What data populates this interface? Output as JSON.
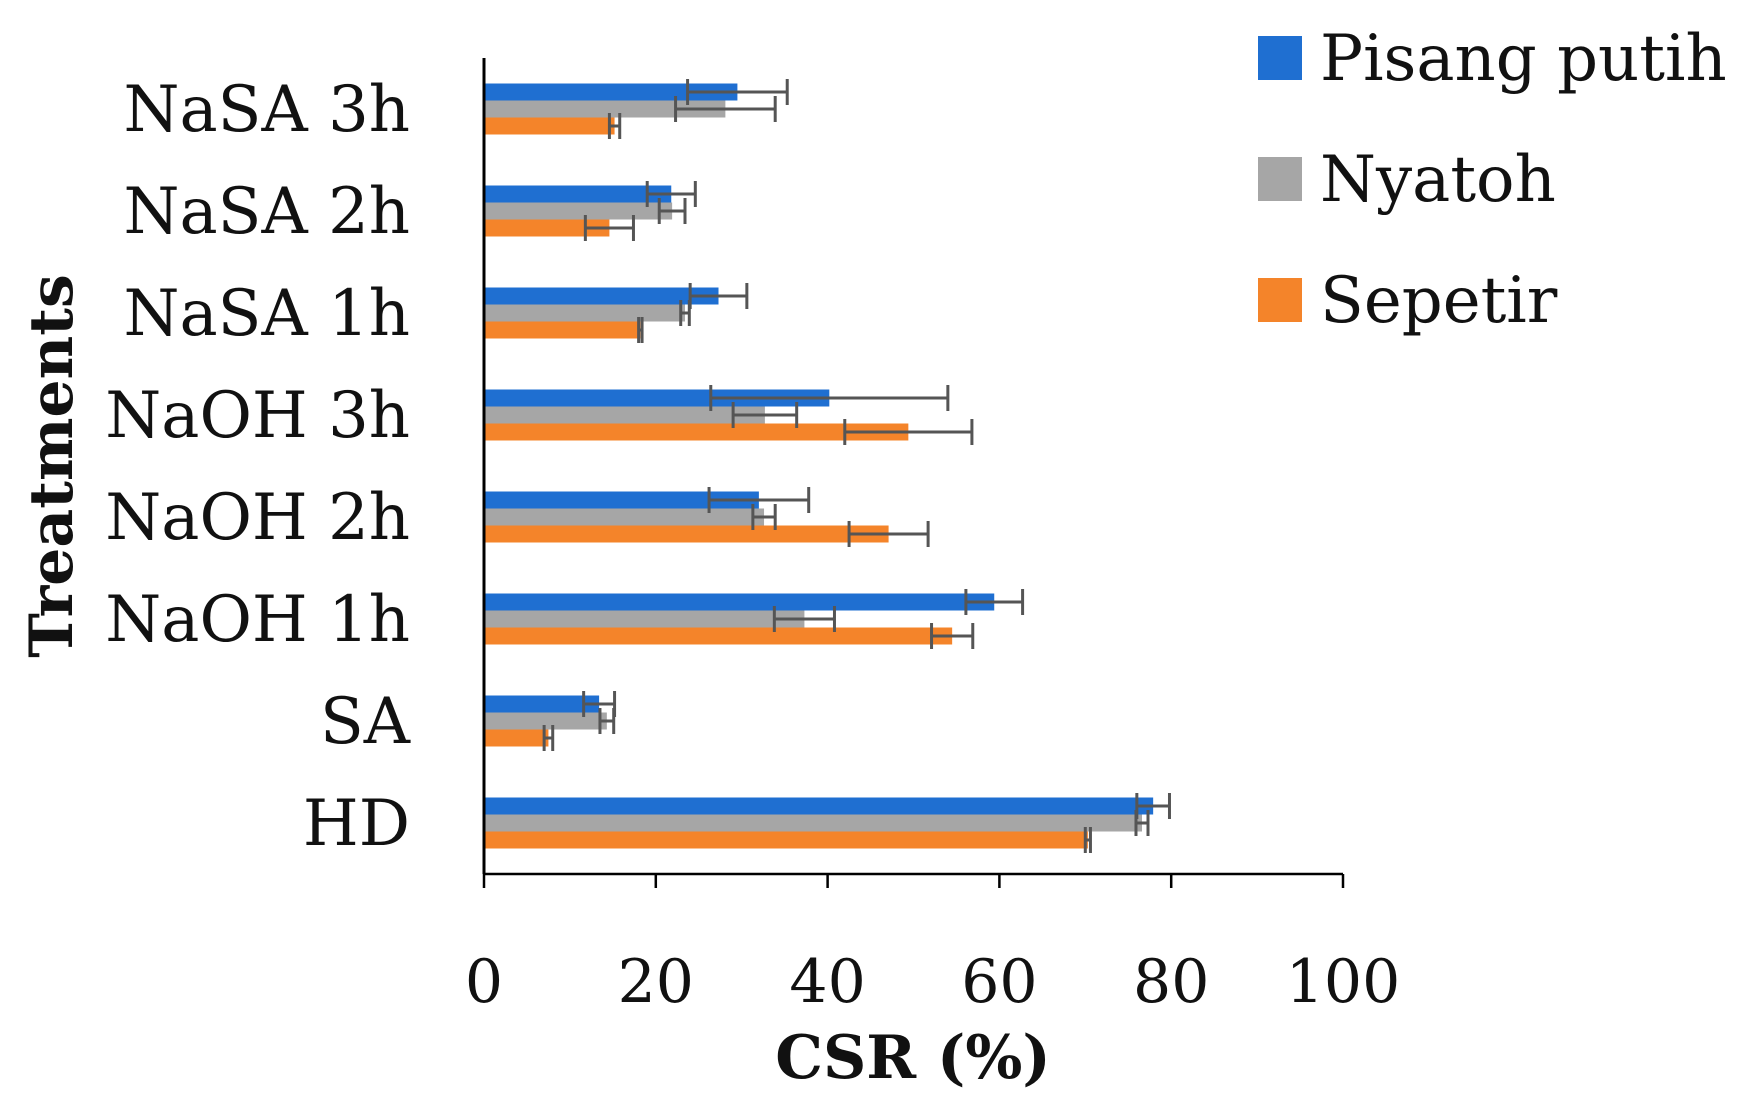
{
  "chart_data": {
    "type": "bar",
    "orientation": "horizontal",
    "title": "",
    "xlabel": "CSR (%)",
    "ylabel": "Treatments",
    "xlim": [
      0,
      100
    ],
    "xticks": [
      "0",
      "20",
      "40",
      "60",
      "80",
      "100"
    ],
    "grid": false,
    "legend_position": "top-right",
    "categories": [
      "NaSA 3h",
      "NaSA 2h",
      "NaSA 1h",
      "NaOH 3h",
      "NaOH 2h",
      "NaOH 1h",
      "SA",
      "HD"
    ],
    "series": [
      {
        "name": "Pisang putih",
        "color": "#1f6fd1",
        "values": [
          29.5,
          21.8,
          27.3,
          40.2,
          32.0,
          59.4,
          13.4,
          77.9
        ],
        "errors": [
          5.8,
          2.8,
          3.3,
          13.8,
          5.8,
          3.3,
          1.8,
          1.9
        ]
      },
      {
        "name": "Nyatoh",
        "color": "#a6a6a6",
        "values": [
          28.1,
          21.9,
          23.4,
          32.7,
          32.6,
          37.3,
          14.3,
          76.6
        ],
        "errors": [
          5.8,
          1.5,
          0.5,
          3.7,
          1.3,
          3.5,
          0.8,
          0.7
        ]
      },
      {
        "name": "Sepetir",
        "color": "#f4842a",
        "values": [
          15.2,
          14.6,
          18.2,
          49.4,
          47.1,
          54.5,
          7.5,
          70.3
        ],
        "errors": [
          0.6,
          2.8,
          0.2,
          7.4,
          4.6,
          2.4,
          0.5,
          0.3
        ]
      }
    ]
  }
}
